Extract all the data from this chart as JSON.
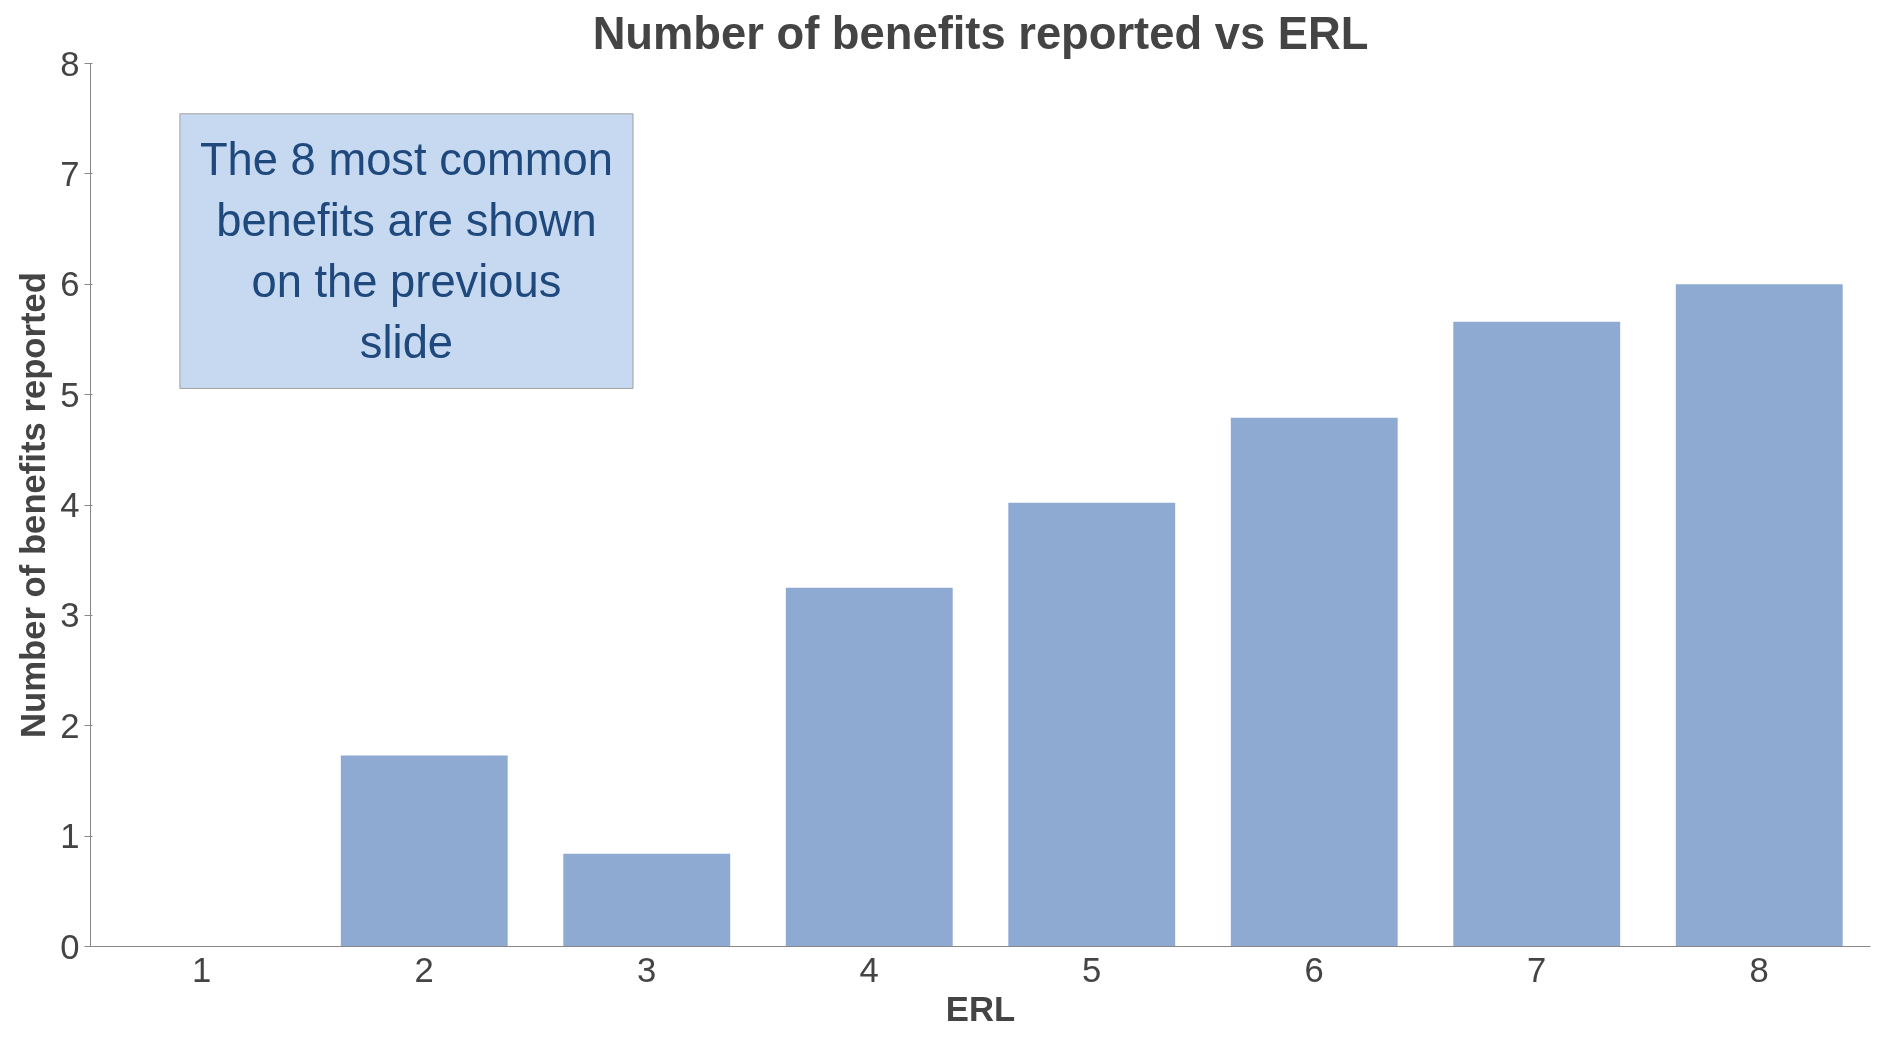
{
  "chart_data": {
    "type": "bar",
    "title": "Number of benefits reported vs ERL",
    "xlabel": "ERL",
    "ylabel": "Number of benefits reported",
    "categories": [
      "1",
      "2",
      "3",
      "4",
      "5",
      "6",
      "7",
      "8"
    ],
    "values": [
      0,
      1.73,
      0.84,
      3.25,
      4.02,
      4.79,
      5.66,
      6.0
    ],
    "color": "#8eaad3",
    "ylim": [
      0,
      8
    ],
    "yticks": [
      0,
      1,
      2,
      3,
      4,
      5,
      6,
      7,
      8
    ],
    "grid": false,
    "annotations": [
      "The 8 most common benefits are shown on the previous slide"
    ]
  }
}
